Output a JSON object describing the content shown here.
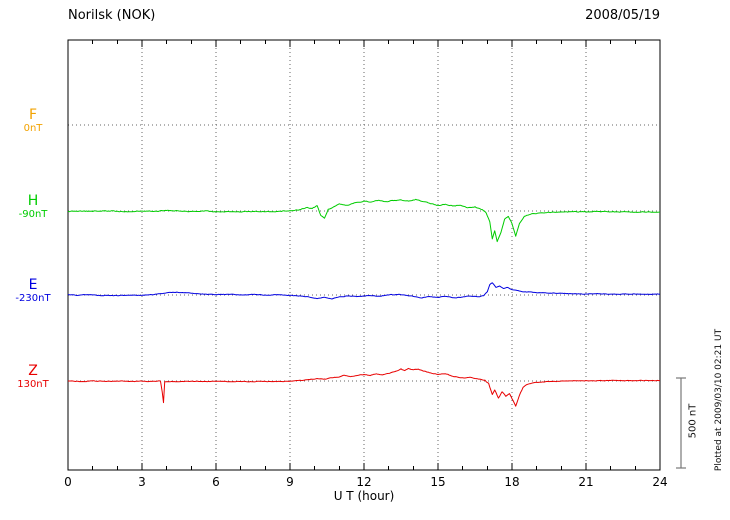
{
  "header": {
    "station": "Norilsk (NOK)",
    "date": "2008/05/19"
  },
  "axis": {
    "xlabel": "U T (hour)"
  },
  "scalebar": {
    "label": "500 nT",
    "span_nT": 500
  },
  "plotted_note": "Plotted at 2009/03/10 02:21 UT",
  "chart_data": {
    "type": "line",
    "title": "Norilsk (NOK)",
    "subtitle": "2008/05/19",
    "xlabel": "U T (hour)",
    "y_unit": "nT",
    "x_range": [
      0,
      24
    ],
    "x_ticks": [
      0,
      3,
      6,
      9,
      12,
      15,
      18,
      21,
      24
    ],
    "x_minor_step": 1,
    "grid": "dotted",
    "scale_nT": 500,
    "series": [
      {
        "name": "F",
        "baseline_label": "0nT",
        "color": "#f2a200",
        "noise_nT": 0,
        "points": []
      },
      {
        "name": "H",
        "baseline_label": "-90nT",
        "color": "#00cc00",
        "noise_nT": 4,
        "points": [
          [
            0,
            -2
          ],
          [
            0.5,
            1
          ],
          [
            1,
            -3
          ],
          [
            1.5,
            2
          ],
          [
            2,
            -1
          ],
          [
            2.5,
            -4
          ],
          [
            3,
            0
          ],
          [
            3.5,
            -2
          ],
          [
            4,
            3
          ],
          [
            4.5,
            0
          ],
          [
            5,
            -3
          ],
          [
            5.5,
            -1
          ],
          [
            6,
            -4
          ],
          [
            6.5,
            -2
          ],
          [
            7,
            -5
          ],
          [
            7.5,
            -2
          ],
          [
            8,
            -4
          ],
          [
            8.6,
            -1
          ],
          [
            9,
            2
          ],
          [
            9.4,
            8
          ],
          [
            9.7,
            20
          ],
          [
            9.9,
            14
          ],
          [
            10.1,
            30
          ],
          [
            10.25,
            -25
          ],
          [
            10.4,
            -40
          ],
          [
            10.55,
            10
          ],
          [
            10.8,
            25
          ],
          [
            11,
            40
          ],
          [
            11.3,
            32
          ],
          [
            11.6,
            45
          ],
          [
            12,
            55
          ],
          [
            12.3,
            50
          ],
          [
            12.6,
            60
          ],
          [
            12.9,
            52
          ],
          [
            13.2,
            58
          ],
          [
            13.5,
            62
          ],
          [
            13.8,
            55
          ],
          [
            14.1,
            65
          ],
          [
            14.4,
            52
          ],
          [
            14.7,
            40
          ],
          [
            15,
            32
          ],
          [
            15.3,
            38
          ],
          [
            15.6,
            28
          ],
          [
            15.9,
            32
          ],
          [
            16.2,
            18
          ],
          [
            16.5,
            24
          ],
          [
            16.8,
            8
          ],
          [
            16.95,
            -10
          ],
          [
            17.1,
            -60
          ],
          [
            17.2,
            -155
          ],
          [
            17.3,
            -110
          ],
          [
            17.4,
            -170
          ],
          [
            17.55,
            -120
          ],
          [
            17.7,
            -45
          ],
          [
            17.85,
            -30
          ],
          [
            18,
            -70
          ],
          [
            18.15,
            -140
          ],
          [
            18.3,
            -70
          ],
          [
            18.5,
            -30
          ],
          [
            18.8,
            -15
          ],
          [
            19.2,
            -10
          ],
          [
            19.6,
            -7
          ],
          [
            20,
            -5
          ],
          [
            20.5,
            -4
          ],
          [
            21,
            -5
          ],
          [
            21.5,
            -3
          ],
          [
            22,
            -5
          ],
          [
            22.5,
            -4
          ],
          [
            23,
            -6
          ],
          [
            23.5,
            -5
          ],
          [
            24,
            -5
          ]
        ]
      },
      {
        "name": "E",
        "baseline_label": "-230nT",
        "color": "#0000e0",
        "noise_nT": 3,
        "points": [
          [
            0,
            3
          ],
          [
            0.4,
            -2
          ],
          [
            0.8,
            2
          ],
          [
            1.2,
            -3
          ],
          [
            1.6,
            -1
          ],
          [
            2,
            -4
          ],
          [
            2.4,
            -1
          ],
          [
            2.8,
            -3
          ],
          [
            3.2,
            0
          ],
          [
            3.6,
            5
          ],
          [
            4,
            12
          ],
          [
            4.4,
            16
          ],
          [
            4.8,
            12
          ],
          [
            5.2,
            8
          ],
          [
            5.6,
            5
          ],
          [
            6,
            2
          ],
          [
            6.5,
            4
          ],
          [
            7,
            1
          ],
          [
            7.5,
            3
          ],
          [
            8,
            0
          ],
          [
            8.5,
            2
          ],
          [
            9,
            -2
          ],
          [
            9.5,
            -6
          ],
          [
            9.8,
            -12
          ],
          [
            10.1,
            -20
          ],
          [
            10.4,
            -12
          ],
          [
            10.7,
            -22
          ],
          [
            11,
            -10
          ],
          [
            11.4,
            -5
          ],
          [
            11.8,
            -8
          ],
          [
            12.2,
            -3
          ],
          [
            12.6,
            -6
          ],
          [
            13,
            0
          ],
          [
            13.4,
            4
          ],
          [
            13.7,
            -2
          ],
          [
            14,
            -8
          ],
          [
            14.3,
            -16
          ],
          [
            14.6,
            -9
          ],
          [
            15,
            -14
          ],
          [
            15.3,
            -8
          ],
          [
            15.7,
            -16
          ],
          [
            16,
            -11
          ],
          [
            16.3,
            -6
          ],
          [
            16.6,
            -10
          ],
          [
            16.85,
            -4
          ],
          [
            17,
            18
          ],
          [
            17.1,
            58
          ],
          [
            17.2,
            68
          ],
          [
            17.35,
            42
          ],
          [
            17.5,
            50
          ],
          [
            17.65,
            36
          ],
          [
            17.8,
            42
          ],
          [
            18,
            30
          ],
          [
            18.3,
            22
          ],
          [
            18.6,
            16
          ],
          [
            19,
            13
          ],
          [
            19.4,
            11
          ],
          [
            19.8,
            9
          ],
          [
            20.2,
            8
          ],
          [
            20.6,
            7
          ],
          [
            21,
            6
          ],
          [
            21.5,
            7
          ],
          [
            22,
            5
          ],
          [
            22.5,
            6
          ],
          [
            23,
            5
          ],
          [
            23.5,
            5
          ],
          [
            24,
            5
          ]
        ]
      },
      {
        "name": "Z",
        "baseline_label": "130nT",
        "color": "#e80000",
        "noise_nT": 3,
        "points": [
          [
            0,
            0
          ],
          [
            0.5,
            -3
          ],
          [
            1,
            1
          ],
          [
            1.5,
            -2
          ],
          [
            2,
            0
          ],
          [
            2.5,
            -3
          ],
          [
            3,
            -1
          ],
          [
            3.4,
            -2
          ],
          [
            3.75,
            -1
          ],
          [
            3.82,
            -60
          ],
          [
            3.87,
            -120
          ],
          [
            3.92,
            -5
          ],
          [
            4.2,
            -2
          ],
          [
            4.6,
            -3
          ],
          [
            5,
            -1
          ],
          [
            5.5,
            -3
          ],
          [
            6,
            -2
          ],
          [
            6.5,
            -4
          ],
          [
            7,
            -2
          ],
          [
            7.5,
            -4
          ],
          [
            8,
            -2
          ],
          [
            8.5,
            -3
          ],
          [
            9,
            -1
          ],
          [
            9.5,
            3
          ],
          [
            9.8,
            8
          ],
          [
            10.1,
            14
          ],
          [
            10.4,
            11
          ],
          [
            10.7,
            18
          ],
          [
            11,
            22
          ],
          [
            11.2,
            32
          ],
          [
            11.45,
            24
          ],
          [
            11.7,
            30
          ],
          [
            12,
            36
          ],
          [
            12.25,
            30
          ],
          [
            12.5,
            40
          ],
          [
            12.75,
            34
          ],
          [
            13,
            42
          ],
          [
            13.25,
            52
          ],
          [
            13.5,
            68
          ],
          [
            13.65,
            58
          ],
          [
            13.8,
            70
          ],
          [
            14,
            62
          ],
          [
            14.2,
            66
          ],
          [
            14.4,
            55
          ],
          [
            14.7,
            45
          ],
          [
            15,
            36
          ],
          [
            15.3,
            40
          ],
          [
            15.6,
            26
          ],
          [
            16,
            18
          ],
          [
            16.3,
            21
          ],
          [
            16.6,
            12
          ],
          [
            16.9,
            5
          ],
          [
            17.05,
            -12
          ],
          [
            17.2,
            -75
          ],
          [
            17.3,
            -50
          ],
          [
            17.45,
            -95
          ],
          [
            17.6,
            -60
          ],
          [
            17.75,
            -85
          ],
          [
            17.9,
            -70
          ],
          [
            18.05,
            -110
          ],
          [
            18.15,
            -140
          ],
          [
            18.3,
            -80
          ],
          [
            18.45,
            -35
          ],
          [
            18.6,
            -20
          ],
          [
            18.8,
            -12
          ],
          [
            19.2,
            -6
          ],
          [
            19.6,
            -2
          ],
          [
            20,
            0
          ],
          [
            20.5,
            2
          ],
          [
            21,
            3
          ],
          [
            21.5,
            2
          ],
          [
            22,
            3
          ],
          [
            22.5,
            2
          ],
          [
            23,
            2
          ],
          [
            23.5,
            3
          ],
          [
            24,
            2
          ]
        ]
      }
    ]
  }
}
